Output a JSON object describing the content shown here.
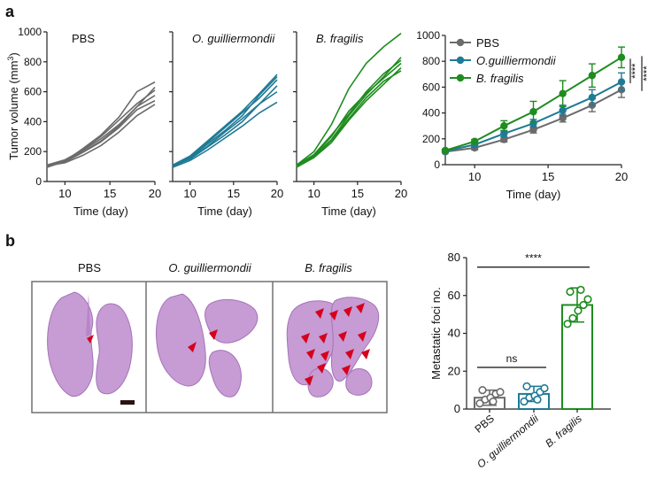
{
  "panel_letters": {
    "a": "a",
    "b": "b"
  },
  "chart_data": [
    {
      "type": "line",
      "panel": "a",
      "title": "PBS",
      "xlabel": "Time (day)",
      "ylabel_main": "Tumor volume (mm",
      "ylabel_sup": "3",
      "ylabel_close": ")",
      "xlim": [
        8,
        20
      ],
      "ylim": [
        0,
        1000
      ],
      "xticks": [
        10,
        15,
        20
      ],
      "yticks": [
        0,
        200,
        400,
        600,
        800,
        1000
      ],
      "color": "#6b6b6b",
      "series": [
        {
          "x": [
            8,
            10,
            12,
            14,
            16,
            18,
            20
          ],
          "y": [
            100,
            130,
            195,
            265,
            360,
            480,
            540
          ]
        },
        {
          "x": [
            8,
            10,
            12,
            14,
            16,
            18,
            20
          ],
          "y": [
            110,
            145,
            210,
            285,
            380,
            500,
            575
          ]
        },
        {
          "x": [
            8,
            10,
            12,
            14,
            16,
            18,
            20
          ],
          "y": [
            105,
            125,
            175,
            240,
            330,
            440,
            515
          ]
        },
        {
          "x": [
            8,
            10,
            12,
            14,
            16,
            18,
            20
          ],
          "y": [
            100,
            140,
            215,
            300,
            410,
            520,
            610
          ]
        },
        {
          "x": [
            8,
            10,
            12,
            14,
            16,
            18,
            20
          ],
          "y": [
            95,
            135,
            220,
            310,
            430,
            600,
            665
          ]
        },
        {
          "x": [
            8,
            10,
            12,
            14,
            16,
            18,
            20
          ],
          "y": [
            108,
            138,
            200,
            270,
            370,
            500,
            630
          ]
        }
      ]
    },
    {
      "type": "line",
      "panel": "a",
      "title": "O. guilliermondii",
      "xlabel": "Time (day)",
      "xlim": [
        8,
        20
      ],
      "ylim": [
        0,
        1000
      ],
      "xticks": [
        10,
        15,
        20
      ],
      "color": "#1f7a95",
      "series": [
        {
          "x": [
            8,
            10,
            12,
            14,
            16,
            18,
            20
          ],
          "y": [
            100,
            160,
            250,
            340,
            440,
            580,
            700
          ]
        },
        {
          "x": [
            8,
            10,
            12,
            14,
            16,
            18,
            20
          ],
          "y": [
            105,
            150,
            230,
            310,
            400,
            520,
            640
          ]
        },
        {
          "x": [
            8,
            10,
            12,
            14,
            16,
            18,
            20
          ],
          "y": [
            95,
            140,
            210,
            290,
            370,
            460,
            530
          ]
        },
        {
          "x": [
            8,
            10,
            12,
            14,
            16,
            18,
            20
          ],
          "y": [
            110,
            170,
            270,
            370,
            470,
            590,
            715
          ]
        },
        {
          "x": [
            8,
            10,
            12,
            14,
            16,
            18,
            20
          ],
          "y": [
            100,
            155,
            235,
            330,
            420,
            520,
            600
          ]
        },
        {
          "x": [
            8,
            10,
            12,
            14,
            16,
            18,
            20
          ],
          "y": [
            102,
            165,
            260,
            360,
            460,
            560,
            680
          ]
        }
      ]
    },
    {
      "type": "line",
      "panel": "a",
      "title": "B. fragilis",
      "xlabel": "Time (day)",
      "xlim": [
        8,
        20
      ],
      "ylim": [
        0,
        1000
      ],
      "xticks": [
        10,
        15,
        20
      ],
      "color": "#1e8c1e",
      "series": [
        {
          "x": [
            8,
            10,
            12,
            14,
            16,
            18,
            20
          ],
          "y": [
            110,
            200,
            380,
            620,
            790,
            900,
            990
          ]
        },
        {
          "x": [
            8,
            10,
            12,
            14,
            16,
            18,
            20
          ],
          "y": [
            100,
            170,
            280,
            440,
            580,
            700,
            830
          ]
        },
        {
          "x": [
            8,
            10,
            12,
            14,
            16,
            18,
            20
          ],
          "y": [
            105,
            175,
            300,
            470,
            590,
            690,
            790
          ]
        },
        {
          "x": [
            8,
            10,
            12,
            14,
            16,
            18,
            20
          ],
          "y": [
            95,
            160,
            260,
            410,
            540,
            650,
            760
          ]
        },
        {
          "x": [
            8,
            10,
            12,
            14,
            16,
            18,
            20
          ],
          "y": [
            100,
            165,
            275,
            420,
            560,
            670,
            740
          ]
        },
        {
          "x": [
            8,
            10,
            12,
            14,
            16,
            18,
            20
          ],
          "y": [
            108,
            180,
            310,
            450,
            600,
            720,
            810
          ]
        }
      ]
    },
    {
      "type": "line",
      "panel": "a",
      "xlabel": "Time (day)",
      "xlim": [
        8,
        20
      ],
      "ylim": [
        0,
        1000
      ],
      "xticks": [
        10,
        15,
        20
      ],
      "yticks": [
        0,
        200,
        400,
        600,
        800,
        1000
      ],
      "legend": "top-left",
      "series": [
        {
          "name": "PBS",
          "color": "#6b6b6b",
          "x": [
            8,
            10,
            12,
            14,
            16,
            18,
            20
          ],
          "y": [
            100,
            130,
            195,
            270,
            360,
            460,
            580
          ],
          "err": [
            10,
            15,
            20,
            25,
            30,
            50,
            60
          ]
        },
        {
          "name": "O.guilliermondii",
          "color": "#1f7a95",
          "x": [
            8,
            10,
            12,
            14,
            16,
            18,
            20
          ],
          "y": [
            105,
            155,
            240,
            320,
            420,
            520,
            640
          ],
          "err": [
            10,
            15,
            25,
            30,
            40,
            60,
            70
          ]
        },
        {
          "name": "B. fragilis",
          "color": "#1e8c1e",
          "x": [
            8,
            10,
            12,
            14,
            16,
            18,
            20
          ],
          "y": [
            110,
            180,
            300,
            410,
            550,
            690,
            830
          ],
          "err": [
            10,
            15,
            40,
            80,
            100,
            90,
            80
          ]
        }
      ],
      "significance": [
        "****",
        "****"
      ]
    },
    {
      "type": "bar",
      "panel": "b",
      "ylabel": "Metastatic foci no.",
      "ylim": [
        0,
        80
      ],
      "yticks": [
        0,
        20,
        40,
        60,
        80
      ],
      "categories": [
        "PBS",
        "O. guilliermondii",
        "B. fragilis"
      ],
      "values": [
        6,
        8,
        55
      ],
      "err": [
        4,
        4,
        9
      ],
      "colors": [
        "#6b6b6b",
        "#1f7a95",
        "#1e8c1e"
      ],
      "points": [
        [
          3,
          5,
          6,
          8,
          9,
          10,
          4
        ],
        [
          4,
          6,
          7,
          9,
          11,
          12,
          5
        ],
        [
          45,
          48,
          52,
          55,
          58,
          62,
          63
        ]
      ],
      "comparisons": [
        {
          "from": 0,
          "to": 1,
          "label": "ns"
        },
        {
          "from": 0,
          "to": 2,
          "label": "****"
        }
      ]
    }
  ],
  "images": {
    "titles": [
      "PBS",
      "O. guilliermondii",
      "B. fragilis"
    ]
  }
}
